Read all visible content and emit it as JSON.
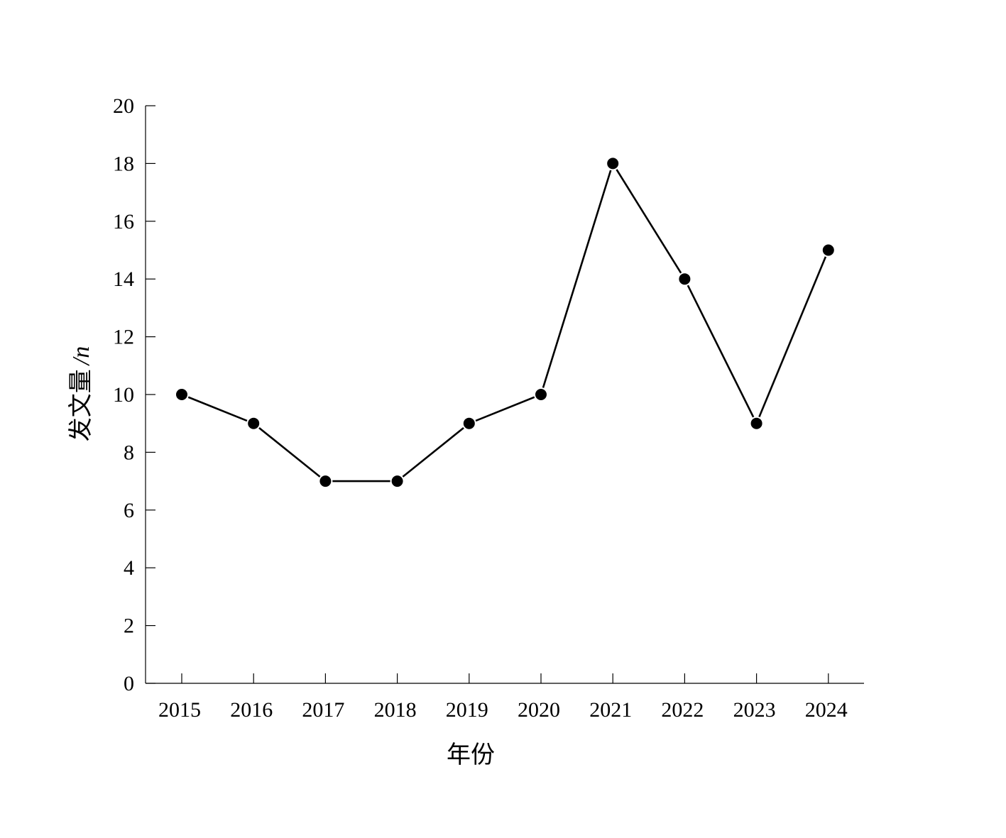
{
  "chart_data": {
    "type": "line",
    "xlabel": "年份",
    "ylabel_main": "发文量",
    "ylabel_unit": "/n",
    "categories": [
      "2015",
      "2016",
      "2017",
      "2018",
      "2019",
      "2020",
      "2021",
      "2022",
      "2023",
      "2024"
    ],
    "series": [
      {
        "values": [
          10,
          9,
          7,
          7,
          9,
          10,
          18,
          14,
          9,
          15
        ]
      }
    ],
    "ylim": [
      0,
      20
    ],
    "yticks": [
      0,
      2,
      4,
      6,
      8,
      10,
      12,
      14,
      16,
      18,
      20
    ],
    "grid": false,
    "legend": "none",
    "marker": "filled-circle",
    "line_color": "#000000",
    "marker_color": "#000000"
  }
}
